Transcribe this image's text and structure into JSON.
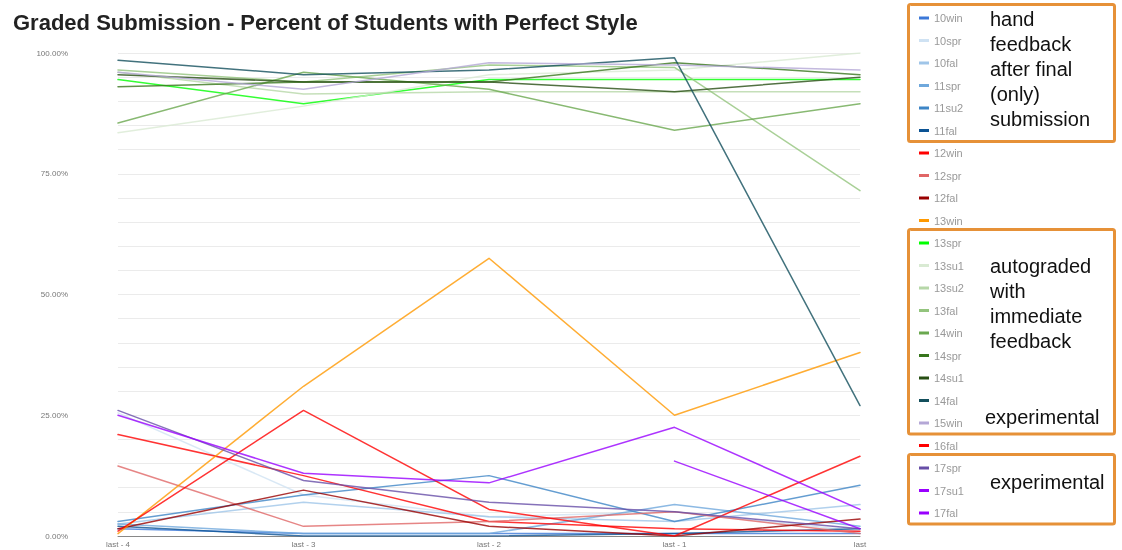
{
  "chart_data": {
    "type": "line",
    "title": "Graded Submission - Percent of Students with Perfect Style",
    "categories": [
      "last - 4",
      "last - 3",
      "last - 2",
      "last - 1",
      "last"
    ],
    "ylim": [
      0,
      100
    ],
    "yticks": [
      {
        "value": 0,
        "label": "0.00%"
      },
      {
        "value": 5,
        "label": null
      },
      {
        "value": 10,
        "label": null
      },
      {
        "value": 15,
        "label": null
      },
      {
        "value": 20,
        "label": null
      },
      {
        "value": 25,
        "label": "25.00%"
      },
      {
        "value": 30,
        "label": null
      },
      {
        "value": 35,
        "label": null
      },
      {
        "value": 40,
        "label": null
      },
      {
        "value": 45,
        "label": null
      },
      {
        "value": 50,
        "label": "50.00%"
      },
      {
        "value": 55,
        "label": null
      },
      {
        "value": 60,
        "label": null
      },
      {
        "value": 65,
        "label": null
      },
      {
        "value": 70,
        "label": null
      },
      {
        "value": 75,
        "label": "75.00%"
      },
      {
        "value": 80,
        "label": null
      },
      {
        "value": 85,
        "label": null
      },
      {
        "value": 90,
        "label": null
      },
      {
        "value": 95,
        "label": null
      },
      {
        "value": 100,
        "label": "100.00%"
      }
    ],
    "grid": "y",
    "legend": "right",
    "marker": "none",
    "line_style": "solid",
    "series": [
      {
        "name": "10win",
        "color": "#3c78d8",
        "values": [
          1.5,
          0.5,
          0.5,
          0.5,
          0.5
        ]
      },
      {
        "name": "10spr",
        "color": "#cfe2f3",
        "values": [
          25.5,
          8.5,
          4,
          5,
          1
        ]
      },
      {
        "name": "10fal",
        "color": "#9fc5e8",
        "values": [
          2.5,
          7,
          4,
          3,
          6.5
        ]
      },
      {
        "name": "11spr",
        "color": "#6fa8dc",
        "values": [
          2.5,
          0.5,
          0.5,
          6.5,
          2
        ]
      },
      {
        "name": "11su2",
        "color": "#3d85c6",
        "values": [
          3,
          8.5,
          12.5,
          3,
          10.5
        ]
      },
      {
        "name": "11fal",
        "color": "#0b5394",
        "values": [
          2,
          0,
          0,
          0.5,
          1.5
        ]
      },
      {
        "name": "12win",
        "color": "#ff0000",
        "values": [
          21,
          12.5,
          3,
          1.5,
          1
        ]
      },
      {
        "name": "12spr",
        "color": "#e06666",
        "values": [
          14.5,
          2,
          3,
          5,
          0.5
        ]
      },
      {
        "name": "12fal",
        "color": "#990000",
        "values": [
          1.5,
          9.5,
          2,
          0,
          3.5
        ]
      },
      {
        "name": "13win",
        "color": "#ff9900",
        "values": [
          0.5,
          31,
          57.5,
          25,
          38
        ]
      },
      {
        "name": "13spr",
        "color": "#00ff00",
        "values": [
          94.5,
          89.5,
          94.5,
          94.5,
          94.5
        ]
      },
      {
        "name": "13su1",
        "color": "#d9ead3",
        "values": [
          83.5,
          89,
          95.5,
          96.5,
          100
        ]
      },
      {
        "name": "13su2",
        "color": "#b6d7a8",
        "values": [
          96,
          91.5,
          92,
          92,
          92
        ]
      },
      {
        "name": "13fal",
        "color": "#93c47d",
        "values": [
          96.5,
          94,
          97.5,
          97,
          71.5
        ]
      },
      {
        "name": "14win",
        "color": "#6aa84f",
        "values": [
          85.5,
          96,
          92.5,
          84,
          89.5
        ]
      },
      {
        "name": "14spr",
        "color": "#38761d",
        "values": [
          93,
          94,
          94,
          98,
          95.5
        ]
      },
      {
        "name": "14su1",
        "color": "#274e13",
        "values": [
          95.5,
          94,
          94,
          92,
          95
        ]
      },
      {
        "name": "14fal",
        "color": "#134f5c",
        "values": [
          98.5,
          95.5,
          96.5,
          99,
          27
        ]
      },
      {
        "name": "15win",
        "color": "#b4a7d6",
        "values": [
          96,
          92.5,
          98,
          97.5,
          96.5
        ]
      },
      {
        "name": "16fal",
        "color": "#ff0000",
        "values": [
          1,
          26,
          5.5,
          0,
          16.5
        ]
      },
      {
        "name": "17spr",
        "color": "#674ea7",
        "values": [
          26,
          11.5,
          7,
          5,
          1.5
        ]
      },
      {
        "name": "17su1",
        "color": "#9900ff",
        "values": [
          25,
          13,
          11,
          22.5,
          5.5
        ]
      },
      {
        "name": "17fal",
        "color": "#9900ff",
        "values": [
          null,
          null,
          null,
          15.5,
          1.5
        ]
      }
    ],
    "annotations": [
      "hand feedback after final (only) submission",
      "autograded with immediate feedback",
      "experimental",
      "experimental"
    ]
  }
}
